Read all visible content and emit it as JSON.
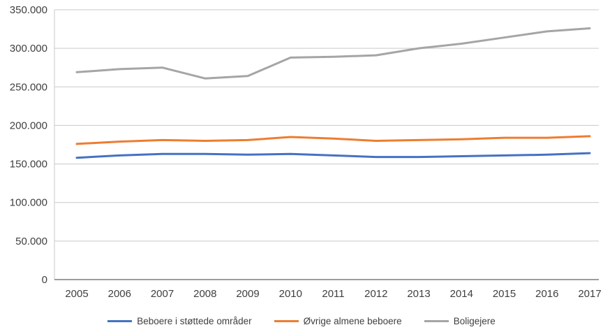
{
  "chart_data": {
    "type": "line",
    "title": "",
    "xlabel": "",
    "ylabel": "",
    "categories": [
      "2005",
      "2006",
      "2007",
      "2008",
      "2009",
      "2010",
      "2011",
      "2012",
      "2013",
      "2014",
      "2015",
      "2016",
      "2017"
    ],
    "series": [
      {
        "name": "Beboere i støttede områder",
        "color": "#4472C4",
        "values": [
          158000,
          161000,
          163000,
          163000,
          162000,
          163000,
          161000,
          159000,
          159000,
          160000,
          161000,
          162000,
          164000
        ]
      },
      {
        "name": "Øvrige almene beboere",
        "color": "#ED7D31",
        "values": [
          176000,
          179000,
          181000,
          180000,
          181000,
          185000,
          183000,
          180000,
          181000,
          182000,
          184000,
          184000,
          186000
        ]
      },
      {
        "name": "Boligejere",
        "color": "#A5A5A5",
        "values": [
          269000,
          273000,
          275000,
          261000,
          264000,
          288000,
          289000,
          291000,
          300000,
          306000,
          314000,
          322000,
          326000
        ]
      }
    ],
    "y_axis": {
      "min": 0,
      "max": 350000,
      "step": 50000,
      "tick_labels": [
        "350.000",
        "300.000",
        "250.000",
        "200.000",
        "150.000",
        "100.000",
        "50.000",
        "0"
      ]
    },
    "legend": {
      "position": "bottom",
      "entries": [
        "Beboere i støttede områder",
        "Øvrige almene beboere",
        "Boligejere"
      ]
    },
    "grid": true,
    "styles": {
      "gridline_color": "#C9C9C9",
      "axis_line_color": "#9D9D9D",
      "text_color": "#3F3F3F",
      "background": "#FFFFFF"
    }
  }
}
